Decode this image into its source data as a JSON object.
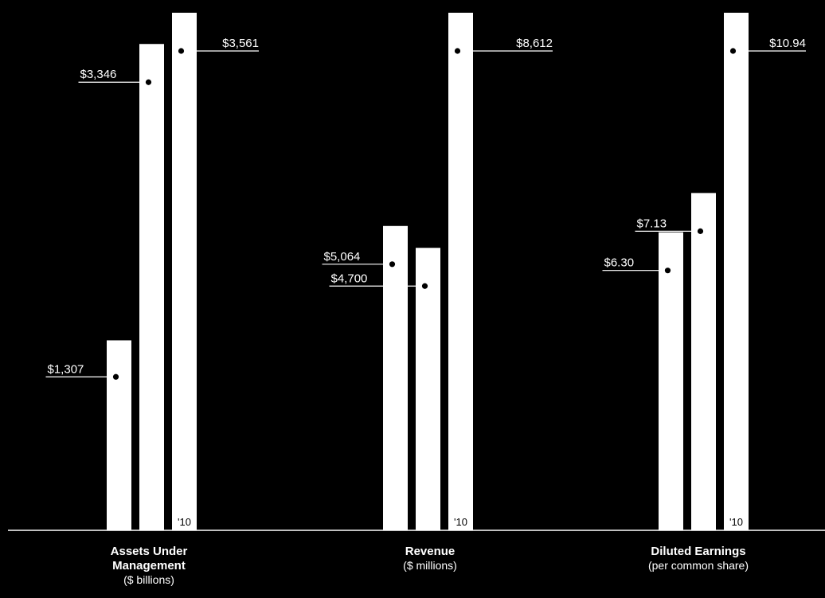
{
  "colors": {
    "background": "#000000",
    "bar": "#ffffff",
    "text": "#ffffff",
    "marker": "#000000"
  },
  "chart_data": [
    {
      "type": "bar",
      "title": [
        "Assets Under",
        "Management"
      ],
      "subtitle": "($ billions)",
      "values": [
        1307,
        3346,
        3561
      ],
      "value_labels": [
        "$1,307",
        "$3,346",
        "$3,561"
      ],
      "last_bar_tag": "'10",
      "ylim": [
        0,
        3561
      ]
    },
    {
      "type": "bar",
      "title": [
        "Revenue"
      ],
      "subtitle": "($ millions)",
      "values": [
        5064,
        4700,
        8612
      ],
      "value_labels": [
        "$5,064",
        "$4,700",
        "$8,612"
      ],
      "last_bar_tag": "'10",
      "ylim": [
        0,
        8612
      ]
    },
    {
      "type": "bar",
      "title": [
        "Diluted Earnings"
      ],
      "subtitle": "(per common share)",
      "values": [
        6.3,
        7.13,
        10.94
      ],
      "value_labels": [
        "$6.30",
        "$7.13",
        "$10.94"
      ],
      "last_bar_tag": "'10",
      "ylim": [
        0,
        10.94
      ]
    }
  ]
}
